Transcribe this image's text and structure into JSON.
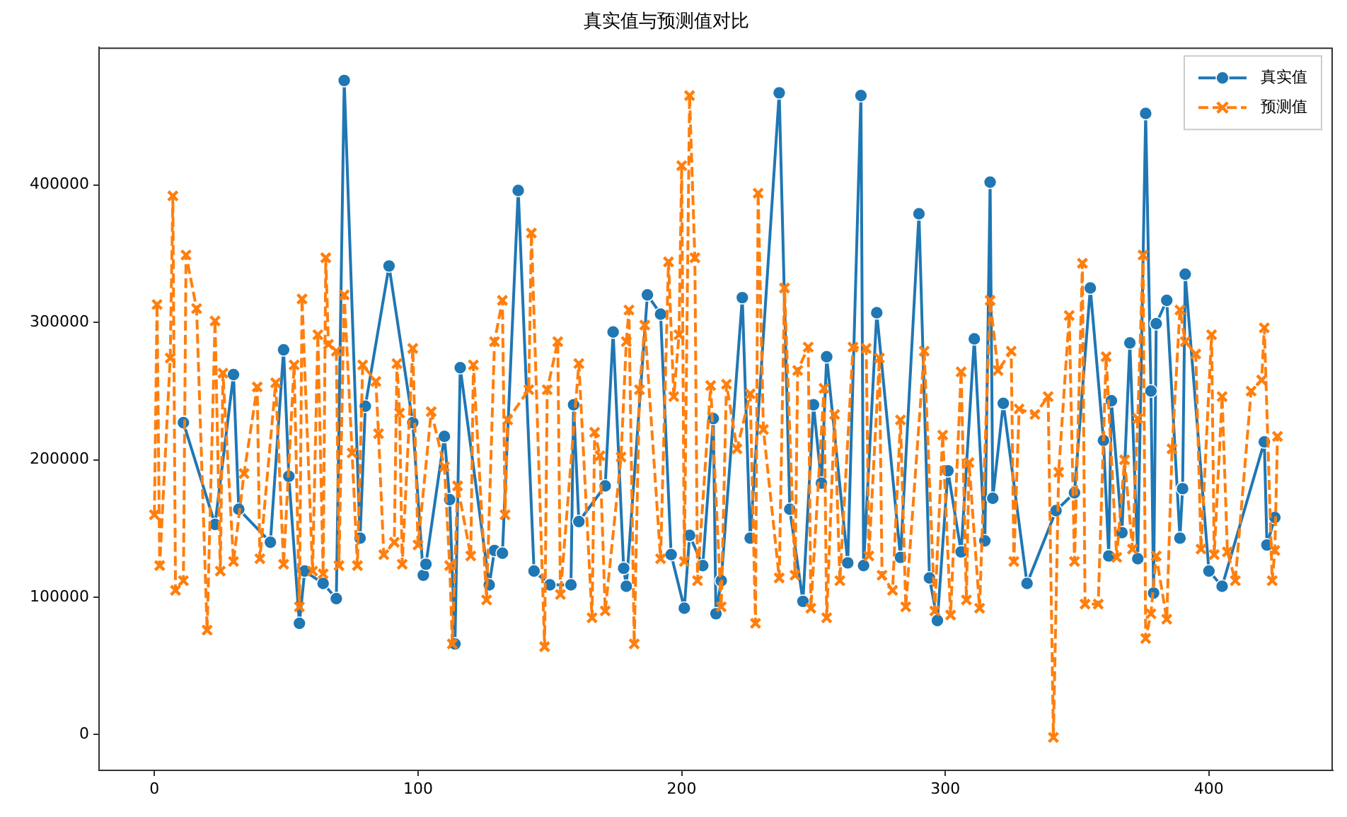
{
  "chart_data": {
    "type": "line",
    "title": "真实值与预测值对比",
    "xlim": [
      -21,
      447
    ],
    "ylim": [
      -26000,
      500000
    ],
    "xticks": [
      0,
      100,
      200,
      300,
      400
    ],
    "yticks": [
      0,
      100000,
      200000,
      300000,
      400000
    ],
    "legend": "top right",
    "series": [
      {
        "name": "真实值",
        "color": "#1f77b4",
        "marker": "circle",
        "line_style": "solid",
        "x": [
          11,
          23,
          30,
          32,
          44,
          49,
          51,
          55,
          57,
          64,
          69,
          72,
          78,
          80,
          89,
          98,
          102,
          103,
          110,
          112,
          114,
          116,
          127,
          129,
          132,
          138,
          144,
          150,
          158,
          159,
          161,
          171,
          174,
          178,
          179,
          187,
          192,
          196,
          201,
          203,
          208,
          212,
          213,
          215,
          223,
          226,
          237,
          241,
          246,
          250,
          253,
          255,
          263,
          268,
          269,
          274,
          283,
          290,
          294,
          297,
          301,
          306,
          311,
          315,
          317,
          318,
          322,
          331,
          342,
          349,
          355,
          360,
          362,
          363,
          367,
          370,
          373,
          376,
          378,
          379,
          380,
          384,
          389,
          390,
          391,
          400,
          405,
          421,
          422,
          425
        ],
        "values": [
          227000,
          153000,
          262000,
          164000,
          140000,
          280000,
          188000,
          81000,
          119000,
          110000,
          99000,
          476000,
          143000,
          239000,
          341000,
          227000,
          116000,
          124000,
          217000,
          171000,
          66000,
          267000,
          109000,
          134000,
          132000,
          396000,
          119000,
          109000,
          109000,
          240000,
          155000,
          181000,
          293000,
          121000,
          108000,
          320000,
          306000,
          131000,
          92000,
          145000,
          123000,
          230000,
          88000,
          112000,
          318000,
          143000,
          467000,
          164000,
          97000,
          240000,
          183000,
          275000,
          125000,
          465000,
          123000,
          307000,
          129000,
          379000,
          114000,
          83000,
          192000,
          133000,
          288000,
          141000,
          402000,
          172000,
          241000,
          110000,
          163000,
          176000,
          325000,
          214000,
          130000,
          243000,
          147000,
          285000,
          128000,
          452000,
          250000,
          103000,
          299000,
          316000,
          143000,
          179000,
          335000,
          119000,
          108000,
          213000,
          138000,
          158000
        ]
      },
      {
        "name": "预测值",
        "color": "#ff7f0e",
        "marker": "cross",
        "line_style": "dashed",
        "x": [
          0,
          1,
          2,
          6,
          7,
          8,
          11,
          12,
          16,
          20,
          23,
          25,
          26,
          30,
          34,
          39,
          40,
          46,
          49,
          53,
          55,
          56,
          60,
          62,
          64,
          65,
          66,
          69,
          70,
          72,
          75,
          77,
          79,
          84,
          85,
          87,
          91,
          92,
          93,
          94,
          98,
          100,
          105,
          110,
          112,
          113,
          115,
          120,
          121,
          126,
          129,
          132,
          133,
          134,
          142,
          143,
          148,
          149,
          153,
          154,
          161,
          166,
          167,
          169,
          171,
          177,
          179,
          180,
          182,
          184,
          186,
          192,
          195,
          197,
          199,
          200,
          201,
          203,
          205,
          206,
          211,
          215,
          217,
          221,
          226,
          228,
          229,
          231,
          237,
          239,
          243,
          244,
          248,
          249,
          254,
          255,
          258,
          260,
          265,
          270,
          271,
          275,
          276,
          280,
          283,
          285,
          292,
          296,
          299,
          302,
          306,
          308,
          309,
          313,
          317,
          320,
          325,
          326,
          328,
          334,
          339,
          341,
          343,
          347,
          349,
          352,
          353,
          358,
          361,
          365,
          368,
          371,
          373,
          375,
          376,
          378,
          380,
          384,
          386,
          389,
          391,
          395,
          397,
          401,
          402,
          405,
          407,
          410,
          416,
          420,
          421,
          424,
          425,
          426
        ],
        "values": [
          160000,
          313000,
          123000,
          274000,
          392000,
          105000,
          112000,
          349000,
          310000,
          76000,
          301000,
          119000,
          263000,
          126000,
          190000,
          253000,
          128000,
          256000,
          124000,
          269000,
          93000,
          317000,
          119000,
          291000,
          117000,
          347000,
          284000,
          279000,
          123000,
          320000,
          205000,
          123000,
          269000,
          257000,
          219000,
          131000,
          140000,
          270000,
          234000,
          124000,
          281000,
          138000,
          235000,
          195000,
          123000,
          66000,
          181000,
          130000,
          269000,
          98000,
          286000,
          316000,
          160000,
          229000,
          251000,
          365000,
          64000,
          251000,
          286000,
          102000,
          270000,
          85000,
          220000,
          203000,
          90000,
          202000,
          286000,
          309000,
          66000,
          251000,
          298000,
          128000,
          344000,
          246000,
          291000,
          414000,
          126000,
          465000,
          347000,
          112000,
          254000,
          93000,
          255000,
          208000,
          248000,
          81000,
          394000,
          222000,
          114000,
          325000,
          116000,
          265000,
          282000,
          92000,
          252000,
          85000,
          233000,
          112000,
          282000,
          281000,
          130000,
          274000,
          116000,
          105000,
          229000,
          93000,
          279000,
          90000,
          218000,
          87000,
          264000,
          98000,
          198000,
          92000,
          316000,
          265000,
          279000,
          126000,
          237000,
          233000,
          246000,
          -2000,
          191000,
          305000,
          126000,
          343000,
          95000,
          95000,
          275000,
          129000,
          200000,
          135000,
          230000,
          349000,
          70000,
          88000,
          130000,
          84000,
          208000,
          309000,
          286000,
          277000,
          135000,
          291000,
          131000,
          246000,
          133000,
          112000,
          250000,
          258000,
          296000,
          112000,
          134000,
          217000
        ]
      }
    ]
  }
}
